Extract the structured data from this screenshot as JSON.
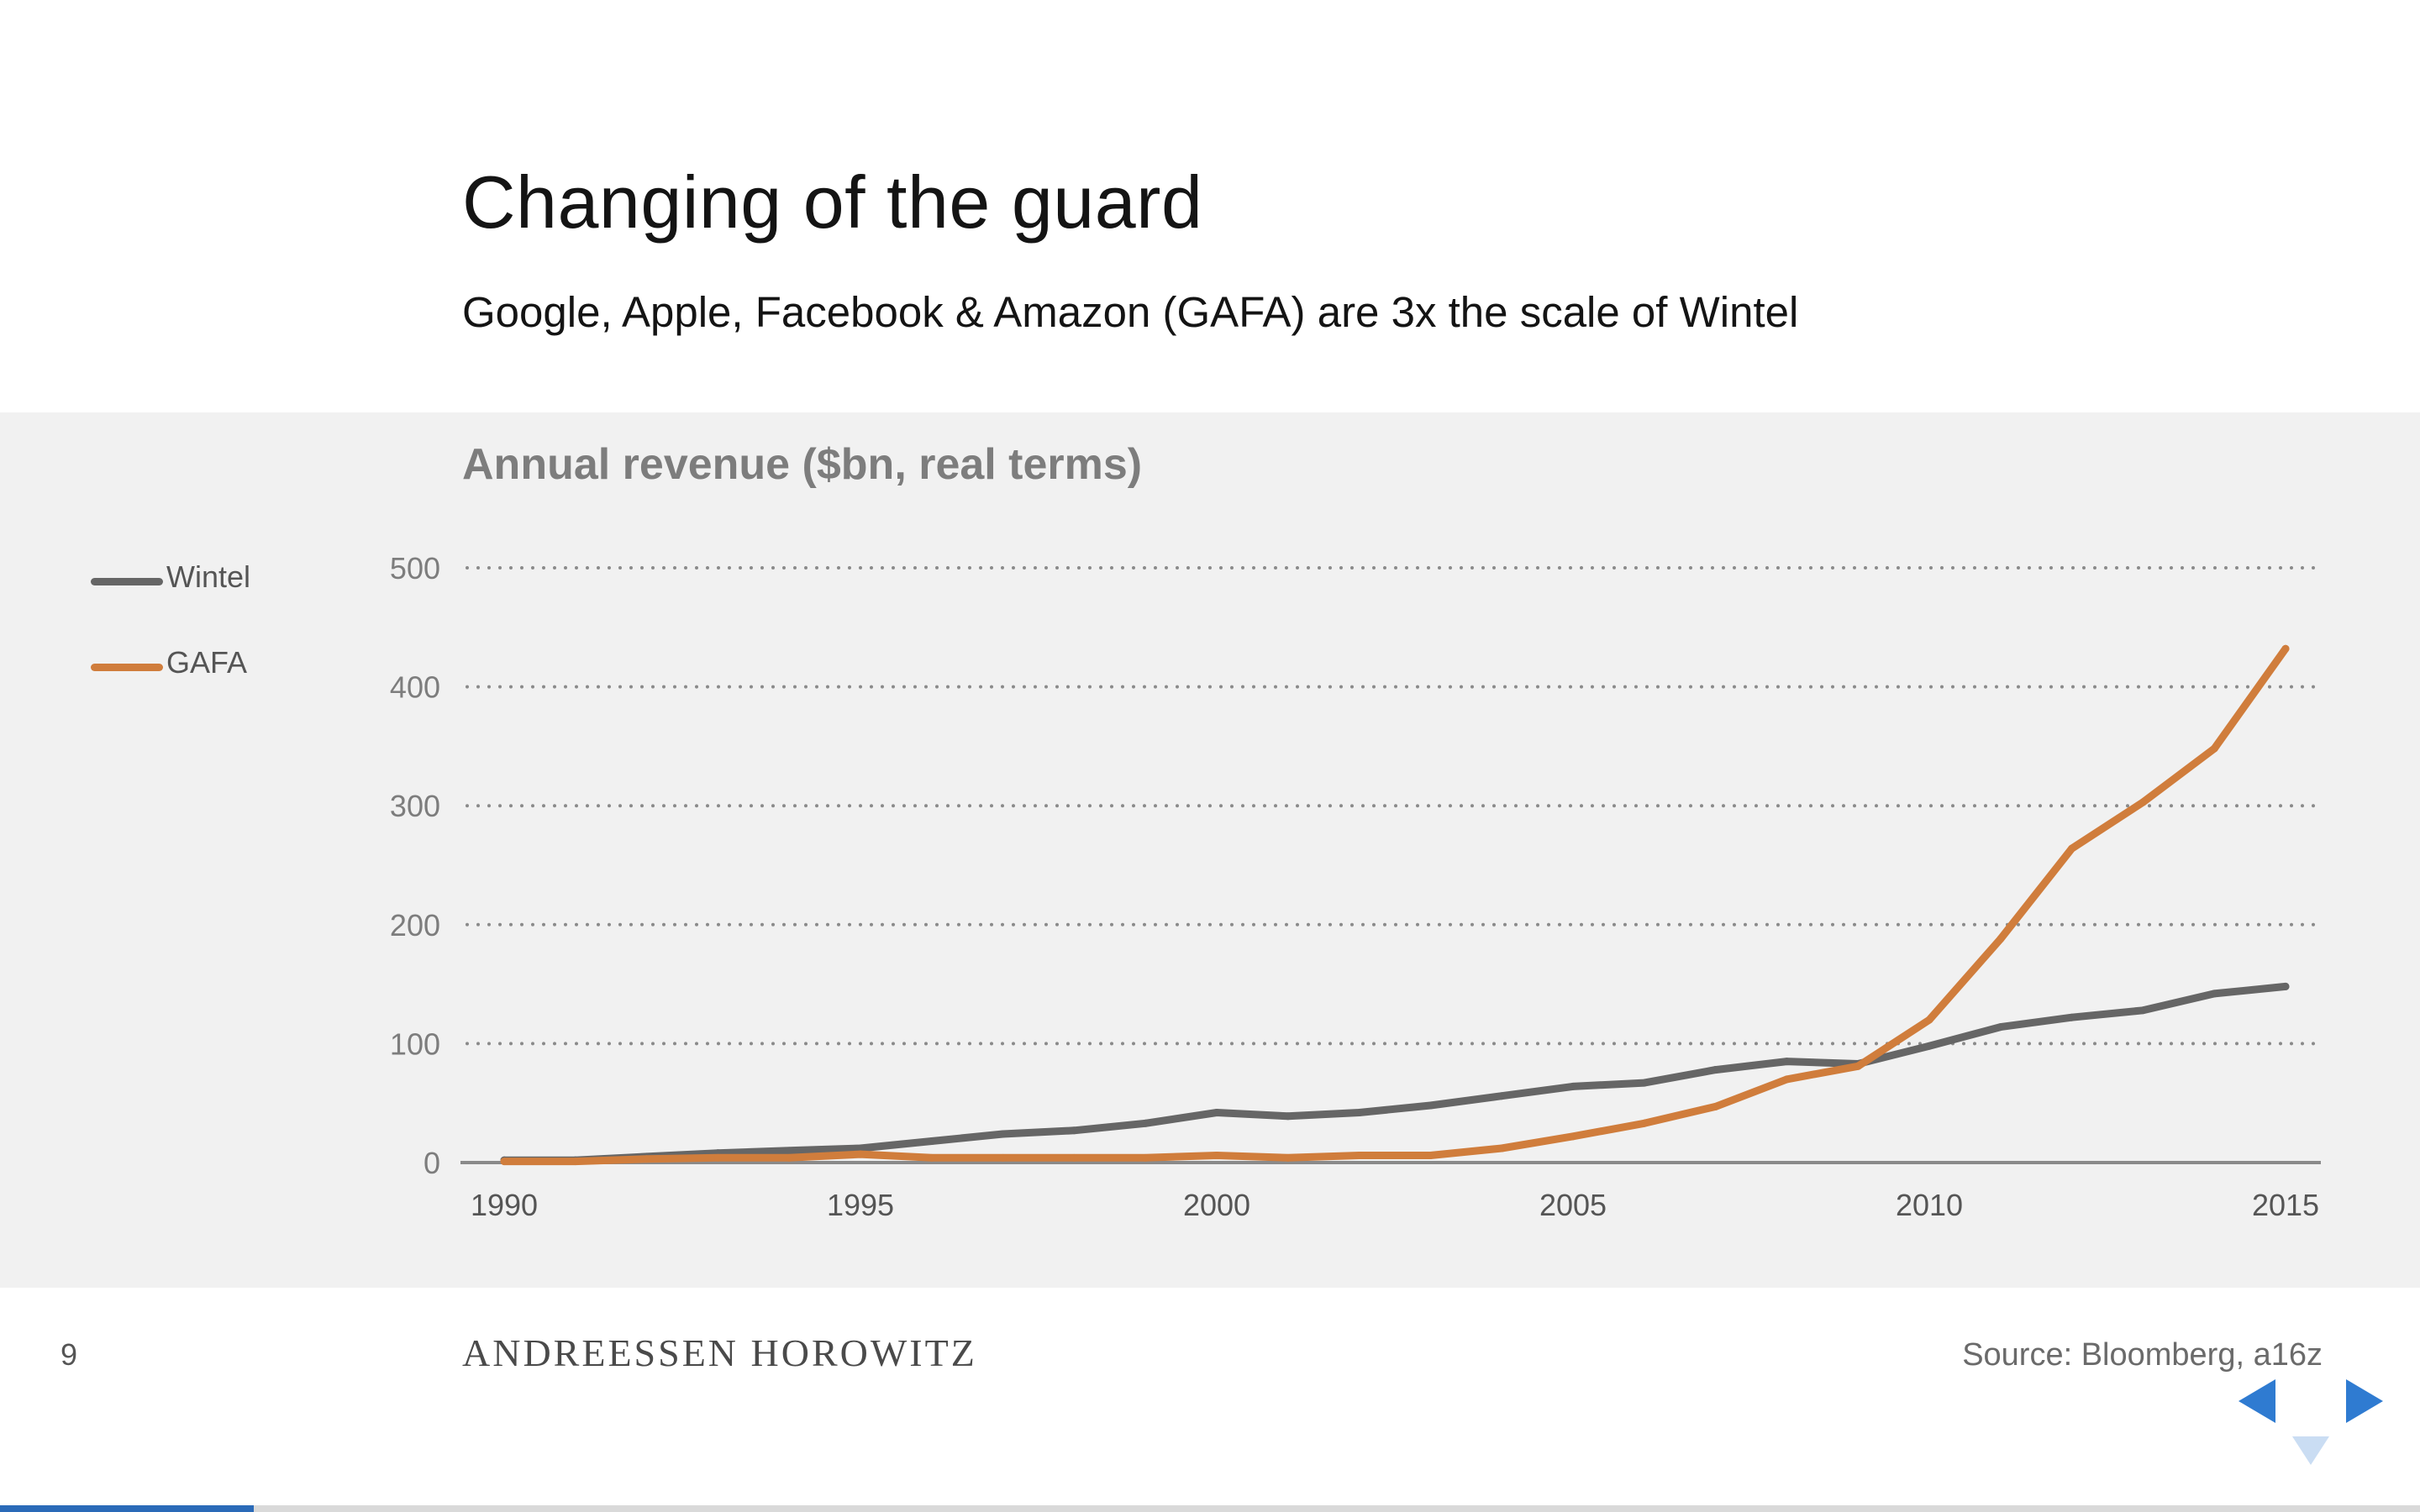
{
  "slide": {
    "title": "Changing of the guard",
    "subtitle": "Google, Apple, Facebook & Amazon (GAFA) are 3x the scale of Wintel",
    "page_number": "9",
    "brand": "ANDREESSEN HOROWITZ",
    "source": "Source: Bloomberg, a16z",
    "progress": 0.105
  },
  "colors": {
    "wintel": "#666666",
    "gafa": "#d07d3c",
    "axis": "#8a8a8a",
    "nav": "#2f7bd1",
    "background_band": "#f1f1f1"
  },
  "icons": {
    "prev": "triangle-left-icon",
    "next": "triangle-right-icon",
    "down": "triangle-down-icon"
  },
  "chart_data": {
    "type": "line",
    "title": "Annual revenue ($bn, real terms)",
    "xlabel": "",
    "ylabel": "",
    "x": [
      1990,
      1991,
      1992,
      1993,
      1994,
      1995,
      1996,
      1997,
      1998,
      1999,
      2000,
      2001,
      2002,
      2003,
      2004,
      2005,
      2006,
      2007,
      2008,
      2009,
      2010,
      2011,
      2012,
      2013,
      2014,
      2015
    ],
    "series": [
      {
        "name": "Wintel",
        "color": "#666666",
        "values": [
          2,
          2,
          5,
          8,
          10,
          12,
          18,
          24,
          27,
          33,
          42,
          39,
          42,
          48,
          56,
          64,
          67,
          78,
          85,
          83,
          98,
          114,
          122,
          128,
          142,
          148
        ]
      },
      {
        "name": "GAFA",
        "color": "#d07d3c",
        "values": [
          1,
          1,
          3,
          4,
          4,
          7,
          4,
          4,
          4,
          4,
          6,
          4,
          6,
          6,
          12,
          22,
          33,
          47,
          70,
          81,
          120,
          188,
          264,
          303,
          348,
          432
        ]
      }
    ],
    "xlim": [
      1990,
      2015
    ],
    "ylim": [
      0,
      500
    ],
    "xticks": [
      "1990",
      "1995",
      "2000",
      "2005",
      "2010",
      "2015"
    ],
    "yticks": [
      "0",
      "100",
      "200",
      "300",
      "400",
      "500"
    ],
    "grid": "horizontal-dotted",
    "legend": "left"
  }
}
